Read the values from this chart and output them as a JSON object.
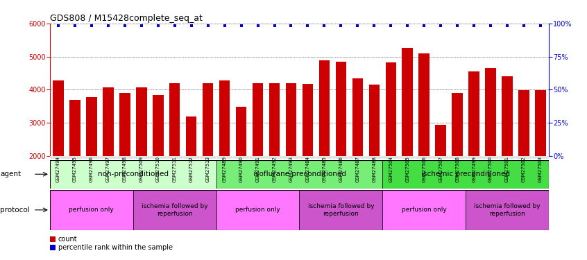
{
  "title": "GDS808 / M15428complete_seq_at",
  "samples": [
    "GSM27494",
    "GSM27495",
    "GSM27496",
    "GSM27497",
    "GSM27498",
    "GSM27509",
    "GSM27510",
    "GSM27511",
    "GSM27512",
    "GSM27513",
    "GSM27489",
    "GSM27490",
    "GSM27491",
    "GSM27492",
    "GSM27493",
    "GSM27484",
    "GSM27485",
    "GSM27486",
    "GSM27487",
    "GSM27488",
    "GSM27504",
    "GSM27505",
    "GSM27506",
    "GSM27507",
    "GSM27508",
    "GSM27499",
    "GSM27500",
    "GSM27501",
    "GSM27502",
    "GSM27503"
  ],
  "counts": [
    4280,
    3700,
    3780,
    4080,
    3900,
    4080,
    3850,
    4200,
    3200,
    4200,
    4280,
    3480,
    4200,
    4200,
    4200,
    4170,
    4880,
    4850,
    4350,
    4150,
    4820,
    5260,
    5100,
    2950,
    3900,
    4550,
    4650,
    4400,
    3980,
    3980
  ],
  "ylim_left": [
    2000,
    6000
  ],
  "ylim_right": [
    0,
    100
  ],
  "yticks_left": [
    2000,
    3000,
    4000,
    5000,
    6000
  ],
  "yticks_right": [
    0,
    25,
    50,
    75,
    100
  ],
  "bar_color": "#cc0000",
  "percentile_color": "#0000cc",
  "agent_groups": [
    {
      "label": "non-preconditioned",
      "start": 0,
      "end": 10,
      "color": "#ccffcc"
    },
    {
      "label": "isoflurane preconditioned",
      "start": 10,
      "end": 20,
      "color": "#77ee77"
    },
    {
      "label": "ischemic preconditioned",
      "start": 20,
      "end": 30,
      "color": "#44dd44"
    }
  ],
  "protocol_groups": [
    {
      "label": "perfusion only",
      "start": 0,
      "end": 5,
      "color": "#ff77ff"
    },
    {
      "label": "ischemia followed by\nreperfusion",
      "start": 5,
      "end": 10,
      "color": "#cc55cc"
    },
    {
      "label": "perfusion only",
      "start": 10,
      "end": 15,
      "color": "#ff77ff"
    },
    {
      "label": "ischemia followed by\nreperfusion",
      "start": 15,
      "end": 20,
      "color": "#cc55cc"
    },
    {
      "label": "perfusion only",
      "start": 20,
      "end": 25,
      "color": "#ff77ff"
    },
    {
      "label": "ischemia followed by\nreperfusion",
      "start": 25,
      "end": 30,
      "color": "#cc55cc"
    }
  ],
  "agent_label": "agent",
  "protocol_label": "protocol",
  "legend_count_label": "count",
  "legend_percentile_label": "percentile rank within the sample",
  "bar_width": 0.65
}
